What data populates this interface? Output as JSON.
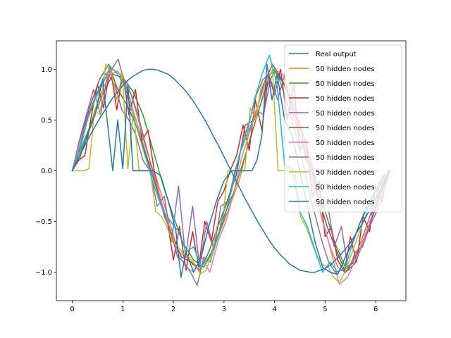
{
  "chart_data": {
    "type": "line",
    "title": "",
    "xlabel": "",
    "ylabel": "",
    "xlim": [
      -0.314,
      6.597
    ],
    "ylim": [
      -1.28,
      1.28
    ],
    "xticks": [
      0,
      1,
      2,
      3,
      4,
      5,
      6
    ],
    "yticks": [
      -1.0,
      -0.5,
      0.0,
      0.5,
      1.0
    ],
    "xtick_labels": [
      "0",
      "1",
      "2",
      "3",
      "4",
      "5",
      "6"
    ],
    "ytick_labels": [
      "−1.0",
      "−0.5",
      "0.0",
      "0.5",
      "1.0"
    ],
    "grid": false,
    "legend_position": "top-right",
    "series": [
      {
        "name": "Real output",
        "color": "#1f77b4",
        "x": [
          0,
          0.1,
          0.2,
          0.3,
          0.4,
          0.5,
          0.6,
          0.7,
          0.8,
          0.9,
          1.0,
          1.1,
          1.2,
          1.3,
          1.4,
          1.5,
          1.6,
          1.7,
          1.8,
          1.9,
          2.0,
          2.1,
          2.2,
          2.3,
          2.4,
          2.5,
          2.6,
          2.7,
          2.8,
          2.9,
          3.0,
          3.1,
          3.2,
          3.3,
          3.4,
          3.5,
          3.6,
          3.7,
          3.8,
          3.9,
          4.0,
          4.1,
          4.2,
          4.3,
          4.4,
          4.5,
          4.6,
          4.7,
          4.8,
          4.9,
          5.0,
          5.1,
          5.2,
          5.3,
          5.4,
          5.5,
          5.6,
          5.7,
          5.8,
          5.9,
          6.0,
          6.1,
          6.2
        ],
        "y": [
          0.0,
          0.1,
          0.2,
          0.3,
          0.39,
          0.48,
          0.56,
          0.64,
          0.72,
          0.78,
          0.84,
          0.89,
          0.93,
          0.96,
          0.99,
          1.0,
          1.0,
          0.99,
          0.97,
          0.95,
          0.91,
          0.86,
          0.81,
          0.75,
          0.68,
          0.6,
          0.52,
          0.43,
          0.33,
          0.24,
          0.14,
          0.04,
          -0.06,
          -0.16,
          -0.26,
          -0.35,
          -0.44,
          -0.53,
          -0.61,
          -0.69,
          -0.76,
          -0.82,
          -0.87,
          -0.92,
          -0.95,
          -0.98,
          -0.99,
          -1.0,
          -1.0,
          -0.98,
          -0.96,
          -0.93,
          -0.88,
          -0.83,
          -0.77,
          -0.71,
          -0.63,
          -0.55,
          -0.46,
          -0.37,
          -0.28,
          -0.18,
          -0.08
        ]
      }
    ]
  },
  "legend_items": [
    {
      "label": "Real output",
      "color": "#1f77b4"
    },
    {
      "label": "50 hidden nodes",
      "color": "#ff7f0e"
    },
    {
      "label": "50 hidden nodes",
      "color": "#2ca02c"
    },
    {
      "label": "50 hidden nodes",
      "color": "#d62728"
    },
    {
      "label": "50 hidden nodes",
      "color": "#9467bd"
    },
    {
      "label": "50 hidden nodes",
      "color": "#8c564b"
    },
    {
      "label": "50 hidden nodes",
      "color": "#e377c2"
    },
    {
      "label": "50 hidden nodes",
      "color": "#7f7f7f"
    },
    {
      "label": "50 hidden nodes",
      "color": "#bcbd22"
    },
    {
      "label": "50 hidden nodes",
      "color": "#17becf"
    },
    {
      "label": "50 hidden nodes",
      "color": "#1f77b4"
    }
  ],
  "approx_series": [
    {
      "name": "50 hidden nodes",
      "color": "#ff7f0e",
      "x": [
        0,
        0.15,
        0.3,
        0.45,
        0.6,
        0.75,
        0.9,
        1.05,
        1.2,
        1.35,
        1.5,
        1.65,
        1.8,
        1.95,
        2.1,
        2.25,
        2.4,
        2.55,
        2.7,
        2.85,
        3.0,
        3.15,
        3.3,
        3.45,
        3.6,
        3.75,
        3.9,
        4.05,
        4.2,
        4.35,
        4.5,
        4.65,
        4.8,
        4.95,
        5.1,
        5.25,
        5.4,
        5.55,
        5.7,
        5.85,
        6.0,
        6.15,
        6.28
      ],
      "y": [
        0.0,
        0.12,
        0.35,
        0.6,
        0.8,
        0.95,
        0.98,
        0.86,
        0.6,
        0.35,
        0.1,
        -0.05,
        -0.3,
        -0.55,
        -0.8,
        -0.85,
        -0.92,
        -0.95,
        -0.85,
        -0.7,
        -0.5,
        -0.3,
        -0.1,
        0.2,
        0.45,
        0.7,
        0.95,
        0.98,
        0.85,
        0.6,
        0.35,
        0.1,
        -0.2,
        -0.5,
        -0.75,
        -0.95,
        -1.0,
        -0.9,
        -0.75,
        -0.55,
        -0.35,
        -0.15,
        0.0
      ]
    },
    {
      "name": "50 hidden nodes",
      "color": "#2ca02c",
      "x": [
        0,
        0.2,
        0.4,
        0.6,
        0.8,
        1.0,
        1.2,
        1.4,
        1.6,
        1.8,
        2.0,
        2.2,
        2.4,
        2.6,
        2.8,
        3.0,
        3.2,
        3.4,
        3.6,
        3.8,
        4.0,
        4.2,
        4.4,
        4.6,
        4.8,
        5.0,
        5.2,
        5.4,
        5.6,
        5.8,
        6.0,
        6.2
      ],
      "y": [
        0.0,
        0.25,
        0.5,
        0.75,
        0.95,
        0.92,
        0.78,
        0.55,
        0.2,
        -0.15,
        -0.45,
        -0.72,
        -0.88,
        -0.95,
        -0.78,
        -0.45,
        -0.2,
        0.12,
        0.45,
        0.78,
        0.98,
        0.85,
        0.6,
        0.3,
        -0.05,
        -0.4,
        -0.72,
        -0.95,
        -0.9,
        -0.65,
        -0.35,
        -0.05
      ]
    },
    {
      "name": "50 hidden nodes",
      "color": "#d62728",
      "x": [
        0,
        0.12,
        0.25,
        0.38,
        0.5,
        0.62,
        0.75,
        0.88,
        1.0,
        1.12,
        1.25,
        1.38,
        1.5,
        1.62,
        1.75,
        1.88,
        2.0,
        2.12,
        2.25,
        2.38,
        2.5,
        2.62,
        2.75,
        2.88,
        3.0,
        3.12,
        3.25,
        3.38,
        3.5,
        3.62,
        3.75,
        3.88,
        4.0,
        4.12,
        4.25,
        4.38,
        4.5,
        4.62,
        4.75,
        4.88,
        5.0,
        5.12,
        5.25,
        5.38,
        5.5,
        5.62,
        5.75,
        5.88,
        6.0,
        6.12,
        6.25
      ],
      "y": [
        0.0,
        0.1,
        0.15,
        0.55,
        0.85,
        0.62,
        1.02,
        0.6,
        0.95,
        0.55,
        0.8,
        0.3,
        0.4,
        0.0,
        -0.3,
        -0.5,
        -0.88,
        -0.55,
        -0.98,
        -0.6,
        -0.95,
        -0.5,
        -0.7,
        -0.3,
        -0.2,
        0.0,
        0.15,
        0.45,
        0.2,
        0.7,
        0.4,
        0.95,
        0.75,
        1.0,
        0.5,
        0.85,
        0.2,
        0.3,
        -0.25,
        -0.1,
        -0.65,
        -0.55,
        -0.88,
        -1.0,
        -0.65,
        -0.9,
        -0.45,
        -0.6,
        -0.15,
        -0.3,
        0.0
      ]
    },
    {
      "name": "50 hidden nodes",
      "color": "#9467bd",
      "x": [
        0,
        0.14,
        0.28,
        0.42,
        0.56,
        0.7,
        0.84,
        0.98,
        1.12,
        1.26,
        1.4,
        1.54,
        1.68,
        1.82,
        1.96,
        2.1,
        2.24,
        2.38,
        2.52,
        2.66,
        2.8,
        2.94,
        3.08,
        3.22,
        3.36,
        3.5,
        3.64,
        3.78,
        3.92,
        4.06,
        4.2,
        4.34,
        4.48,
        4.62,
        4.76,
        4.9,
        5.04,
        5.18,
        5.32,
        5.46,
        5.6,
        5.74,
        5.88,
        6.02,
        6.16,
        6.28
      ],
      "y": [
        0.0,
        0.3,
        0.55,
        0.8,
        0.55,
        0.95,
        0.85,
        0.6,
        0.5,
        0.35,
        0.1,
        0.0,
        -0.35,
        -0.25,
        -0.7,
        -0.15,
        -0.85,
        -0.35,
        -0.95,
        -0.5,
        -0.78,
        -0.35,
        -0.3,
        0.0,
        0.25,
        0.4,
        0.6,
        0.55,
        0.9,
        0.7,
        0.95,
        0.55,
        0.5,
        0.1,
        0.0,
        -0.4,
        -0.3,
        -0.75,
        -0.55,
        -0.98,
        -0.8,
        -0.75,
        -0.55,
        -0.4,
        -0.2,
        0.0
      ]
    },
    {
      "name": "50 hidden nodes",
      "color": "#8c564b",
      "x": [
        0,
        0.18,
        0.36,
        0.54,
        0.72,
        0.9,
        1.08,
        1.26,
        1.44,
        1.62,
        1.8,
        1.98,
        2.16,
        2.34,
        2.52,
        2.7,
        2.88,
        3.06,
        3.24,
        3.42,
        3.6,
        3.78,
        3.96,
        4.14,
        4.32,
        4.5,
        4.68,
        4.86,
        5.04,
        5.22,
        5.4,
        5.58,
        5.76,
        5.94,
        6.12,
        6.28
      ],
      "y": [
        0.0,
        0.35,
        0.65,
        0.9,
        1.05,
        0.8,
        0.65,
        0.45,
        0.18,
        -0.1,
        -0.4,
        -0.65,
        -0.85,
        -0.9,
        -0.98,
        -0.8,
        -0.55,
        -0.3,
        -0.05,
        0.45,
        0.5,
        0.85,
        1.05,
        0.9,
        0.7,
        0.42,
        0.1,
        -0.25,
        -0.55,
        -0.78,
        -1.0,
        -0.92,
        -0.7,
        -0.45,
        -0.2,
        0.0
      ]
    },
    {
      "name": "50 hidden nodes",
      "color": "#e377c2",
      "x": [
        0,
        0.16,
        0.32,
        0.48,
        0.64,
        0.8,
        0.96,
        1.12,
        1.28,
        1.44,
        1.6,
        1.76,
        1.92,
        2.08,
        2.24,
        2.4,
        2.56,
        2.72,
        2.88,
        3.04,
        3.2,
        3.36,
        3.52,
        3.68,
        3.84,
        4.0,
        4.16,
        4.32,
        4.48,
        4.64,
        4.8,
        4.96,
        5.12,
        5.28,
        5.44,
        5.6,
        5.76,
        5.92,
        6.08,
        6.24
      ],
      "y": [
        0.0,
        0.3,
        0.55,
        0.75,
        0.9,
        1.0,
        0.95,
        0.82,
        0.55,
        0.25,
        0.0,
        -0.3,
        -0.55,
        -0.8,
        -0.95,
        -1.0,
        -0.85,
        -1.0,
        -0.7,
        -0.5,
        -0.2,
        0.15,
        0.4,
        0.65,
        0.9,
        1.0,
        0.95,
        0.75,
        0.45,
        0.15,
        -0.2,
        -0.5,
        -0.8,
        -1.12,
        -1.05,
        -0.88,
        -0.7,
        -0.45,
        -0.2,
        0.0
      ]
    },
    {
      "name": "50 hidden nodes",
      "color": "#7f7f7f",
      "x": [
        0,
        0.13,
        0.26,
        0.39,
        0.52,
        0.65,
        0.78,
        0.91,
        1.04,
        1.17,
        1.3,
        1.43,
        1.56,
        1.69,
        1.82,
        1.95,
        2.08,
        2.21,
        2.34,
        2.47,
        2.6,
        2.73,
        2.86,
        2.99,
        3.12,
        3.25,
        3.38,
        3.51,
        3.64,
        3.77,
        3.9,
        4.03,
        4.16,
        4.29,
        4.42,
        4.55,
        4.68,
        4.81,
        4.94,
        5.07,
        5.2,
        5.33,
        5.46,
        5.59,
        5.72,
        5.85,
        5.98,
        6.11,
        6.24
      ],
      "y": [
        0.0,
        0.2,
        0.45,
        0.65,
        0.8,
        0.95,
        1.0,
        1.1,
        0.85,
        0.75,
        0.55,
        0.3,
        0.05,
        -0.2,
        -0.45,
        -0.6,
        -0.85,
        -0.9,
        -1.0,
        -1.13,
        -0.85,
        -0.9,
        -0.65,
        -0.5,
        -0.25,
        0.05,
        0.3,
        0.5,
        0.75,
        0.9,
        0.95,
        1.0,
        0.8,
        0.6,
        0.35,
        0.1,
        -0.2,
        -0.45,
        -0.7,
        -0.9,
        -1.0,
        -0.98,
        -0.95,
        -0.85,
        -0.68,
        -0.5,
        -0.3,
        -0.1,
        0.0
      ]
    },
    {
      "name": "50 hidden nodes",
      "color": "#bcbd22",
      "x": [
        0,
        0.11,
        0.22,
        0.33,
        0.44,
        0.55,
        0.66,
        0.77,
        0.88,
        0.99,
        1.1,
        1.21,
        1.32,
        1.43,
        1.54,
        1.65,
        1.76,
        1.87,
        1.98,
        2.09,
        2.2,
        2.31,
        2.42,
        2.53,
        2.64,
        2.75,
        2.86,
        2.97,
        3.08,
        3.19,
        3.3,
        3.41,
        3.52,
        3.63,
        3.74,
        3.85,
        3.96,
        4.07,
        4.18,
        4.29,
        4.4,
        4.51,
        4.62,
        4.73,
        4.84,
        4.95,
        5.06,
        5.17,
        5.28,
        5.39,
        5.5,
        5.61,
        5.72,
        5.83,
        5.94,
        6.05,
        6.16,
        6.27
      ],
      "y": [
        0.0,
        0.0,
        0.0,
        0.02,
        0.6,
        0.55,
        1.05,
        0.98,
        0.7,
        0.95,
        0.02,
        0.6,
        0.0,
        0.0,
        0.0,
        -0.4,
        -0.45,
        -0.55,
        -0.7,
        -0.75,
        -0.82,
        -0.85,
        -0.92,
        -1.02,
        -0.98,
        -0.85,
        -0.55,
        -0.5,
        0.0,
        0.0,
        0.0,
        0.0,
        0.62,
        0.5,
        0.85,
        0.88,
        1.0,
        0.0,
        0.0,
        0.0,
        0.0,
        -0.45,
        -0.55,
        -0.7,
        -0.85,
        -0.92,
        -0.95,
        -1.05,
        -1.1,
        -1.0,
        -0.85,
        -0.7,
        -0.55,
        -0.4,
        -0.25,
        -0.12,
        -0.05,
        0.0
      ]
    },
    {
      "name": "50 hidden nodes",
      "color": "#17becf",
      "x": [
        0,
        0.15,
        0.3,
        0.45,
        0.6,
        0.75,
        0.9,
        1.05,
        1.2,
        1.35,
        1.5,
        1.65,
        1.8,
        1.95,
        2.1,
        2.25,
        2.4,
        2.55,
        2.7,
        2.85,
        3.0,
        3.15,
        3.3,
        3.45,
        3.6,
        3.75,
        3.9,
        4.05,
        4.2,
        4.35,
        4.5,
        4.65,
        4.8,
        4.95,
        5.1,
        5.25,
        5.4,
        5.55,
        5.7,
        5.85,
        6.0,
        6.15,
        6.28
      ],
      "y": [
        0.0,
        0.2,
        0.5,
        0.7,
        0.85,
        1.03,
        0.95,
        0.82,
        0.55,
        0.3,
        0.05,
        -0.2,
        -0.4,
        -0.5,
        -0.6,
        -0.8,
        -0.75,
        -0.95,
        -0.85,
        -0.7,
        -0.4,
        -0.2,
        0.15,
        0.35,
        0.7,
        0.95,
        1.14,
        0.85,
        0.05,
        0.02,
        -0.4,
        -0.55,
        -0.78,
        -1.0,
        -0.9,
        -1.0,
        -0.95,
        -0.7,
        -0.5,
        -0.32,
        -0.2,
        -0.05,
        0.0
      ]
    },
    {
      "name": "50 hidden nodes",
      "color": "#1f77b4",
      "x": [
        0,
        0.15,
        0.3,
        0.45,
        0.6,
        0.7,
        0.8,
        0.9,
        1.0,
        1.1,
        1.2,
        1.3,
        1.45,
        1.6,
        1.75,
        1.9,
        2.05,
        2.15,
        2.25,
        2.4,
        2.55,
        2.7,
        2.85,
        3.0,
        3.15,
        3.3,
        3.45,
        3.55,
        3.65,
        3.75,
        3.85,
        3.95,
        4.05,
        4.2,
        4.35,
        4.5,
        4.65,
        4.8,
        4.95,
        5.1,
        5.25,
        5.4,
        5.55,
        5.7,
        5.85,
        6.0,
        6.15,
        6.28
      ],
      "y": [
        0.0,
        0.15,
        0.35,
        0.55,
        0.9,
        0.45,
        0.0,
        0.5,
        0.02,
        0.85,
        0.0,
        0.0,
        0.0,
        0.0,
        -0.05,
        -0.3,
        -0.6,
        -1.05,
        -0.8,
        -1.0,
        -0.85,
        -0.55,
        -0.3,
        -0.1,
        0.0,
        0.0,
        0.0,
        0.0,
        0.1,
        0.35,
        1.05,
        0.7,
        0.95,
        0.5,
        0.35,
        0.0,
        -0.35,
        -0.7,
        -0.95,
        -1.0,
        -1.02,
        -0.85,
        -0.7,
        -0.5,
        -0.35,
        -0.2,
        -0.1,
        0.0
      ]
    }
  ]
}
